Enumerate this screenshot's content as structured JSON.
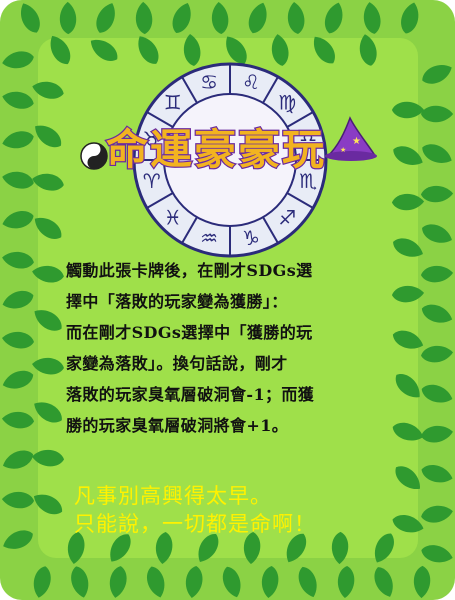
{
  "card": {
    "title": "命運豪豪玩",
    "body_lines": [
      "觸動此張卡牌後，在剛才SDGs選",
      "擇中「落敗的玩家變為獲勝」：",
      "而在剛才SDGs選擇中「獲勝的玩",
      "家變為落敗」。換句話說，剛才",
      "落敗的玩家臭氧層破洞會-1；而獲",
      "勝的玩家臭氧層破洞將會+1。"
    ],
    "tagline_lines": [
      "凡事別高興得太早。",
      "只能說，一切都是命啊！"
    ],
    "zodiac_symbols": [
      "♏",
      "♐",
      "♑",
      "♒",
      "♓",
      "♈",
      "♉",
      "♊",
      "♋",
      "♌",
      "♍",
      "♎"
    ]
  },
  "colors": {
    "background": "#8bd245",
    "panel": "#9fe04a",
    "leaf": "#2f9a2f",
    "title_fill": "#f2b320",
    "title_stroke": "#6a2aa0",
    "tagline": "#fff200"
  },
  "icons": [
    "leaf-border",
    "zodiac-wheel",
    "yin-yang-icon",
    "wizard-hat-icon"
  ]
}
